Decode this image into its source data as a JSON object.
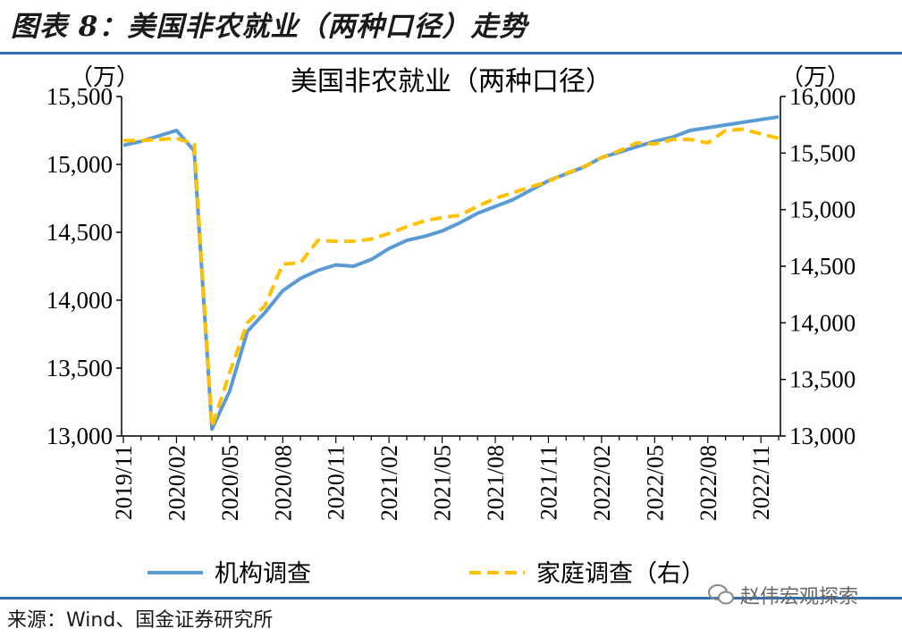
{
  "figure": {
    "title": "图表 8：美国非农就业（两种口径）走势",
    "source": "来源：Wind、国金证券研究所",
    "watermark": "赵伟宏观探索"
  },
  "chart_data": {
    "type": "line",
    "title": "美国非农就业（两种口径）",
    "left_unit": "（万）",
    "right_unit": "（万）",
    "ylim_left": [
      13000,
      15500
    ],
    "ylim_right": [
      13000,
      16000
    ],
    "left_ticks": [
      "13,000",
      "13,500",
      "14,000",
      "14,500",
      "15,000",
      "15,500"
    ],
    "right_ticks": [
      "13,000",
      "13,500",
      "14,000",
      "14,500",
      "15,000",
      "15,500",
      "16,000"
    ],
    "x_tick_labels": [
      "2019/11",
      "2020/02",
      "2020/05",
      "2020/08",
      "2020/11",
      "2021/02",
      "2021/05",
      "2021/08",
      "2021/11",
      "2022/02",
      "2022/05",
      "2022/08",
      "2022/11"
    ],
    "x": [
      "2019/11",
      "2019/12",
      "2020/01",
      "2020/02",
      "2020/03",
      "2020/04",
      "2020/05",
      "2020/06",
      "2020/07",
      "2020/08",
      "2020/09",
      "2020/10",
      "2020/11",
      "2020/12",
      "2021/01",
      "2021/02",
      "2021/03",
      "2021/04",
      "2021/05",
      "2021/06",
      "2021/07",
      "2021/08",
      "2021/09",
      "2021/10",
      "2021/11",
      "2021/12",
      "2022/01",
      "2022/02",
      "2022/03",
      "2022/04",
      "2022/05",
      "2022/06",
      "2022/07",
      "2022/08",
      "2022/09",
      "2022/10",
      "2022/11",
      "2022/12"
    ],
    "series": [
      {
        "name": "机构调查",
        "axis": "left",
        "color": "#5b9bd5",
        "style": "solid",
        "values": [
          15140,
          15170,
          15210,
          15250,
          15100,
          13050,
          13330,
          13770,
          13910,
          14070,
          14160,
          14220,
          14260,
          14250,
          14300,
          14380,
          14440,
          14470,
          14510,
          14570,
          14640,
          14690,
          14740,
          14810,
          14880,
          14930,
          14980,
          15050,
          15090,
          15130,
          15170,
          15200,
          15250,
          15270,
          15290,
          15310,
          15330,
          15350
        ]
      },
      {
        "name": "家庭调查（右）",
        "axis": "right",
        "color": "#ffc000",
        "style": "dashed",
        "values": [
          15610,
          15610,
          15620,
          15630,
          15580,
          13080,
          13560,
          14000,
          14150,
          14520,
          14530,
          14730,
          14720,
          14720,
          14740,
          14790,
          14850,
          14900,
          14930,
          14950,
          15030,
          15100,
          15150,
          15200,
          15250,
          15320,
          15380,
          15460,
          15520,
          15590,
          15580,
          15620,
          15620,
          15590,
          15700,
          15710,
          15670,
          15630
        ]
      }
    ],
    "legend_position": "bottom",
    "grid": false
  }
}
